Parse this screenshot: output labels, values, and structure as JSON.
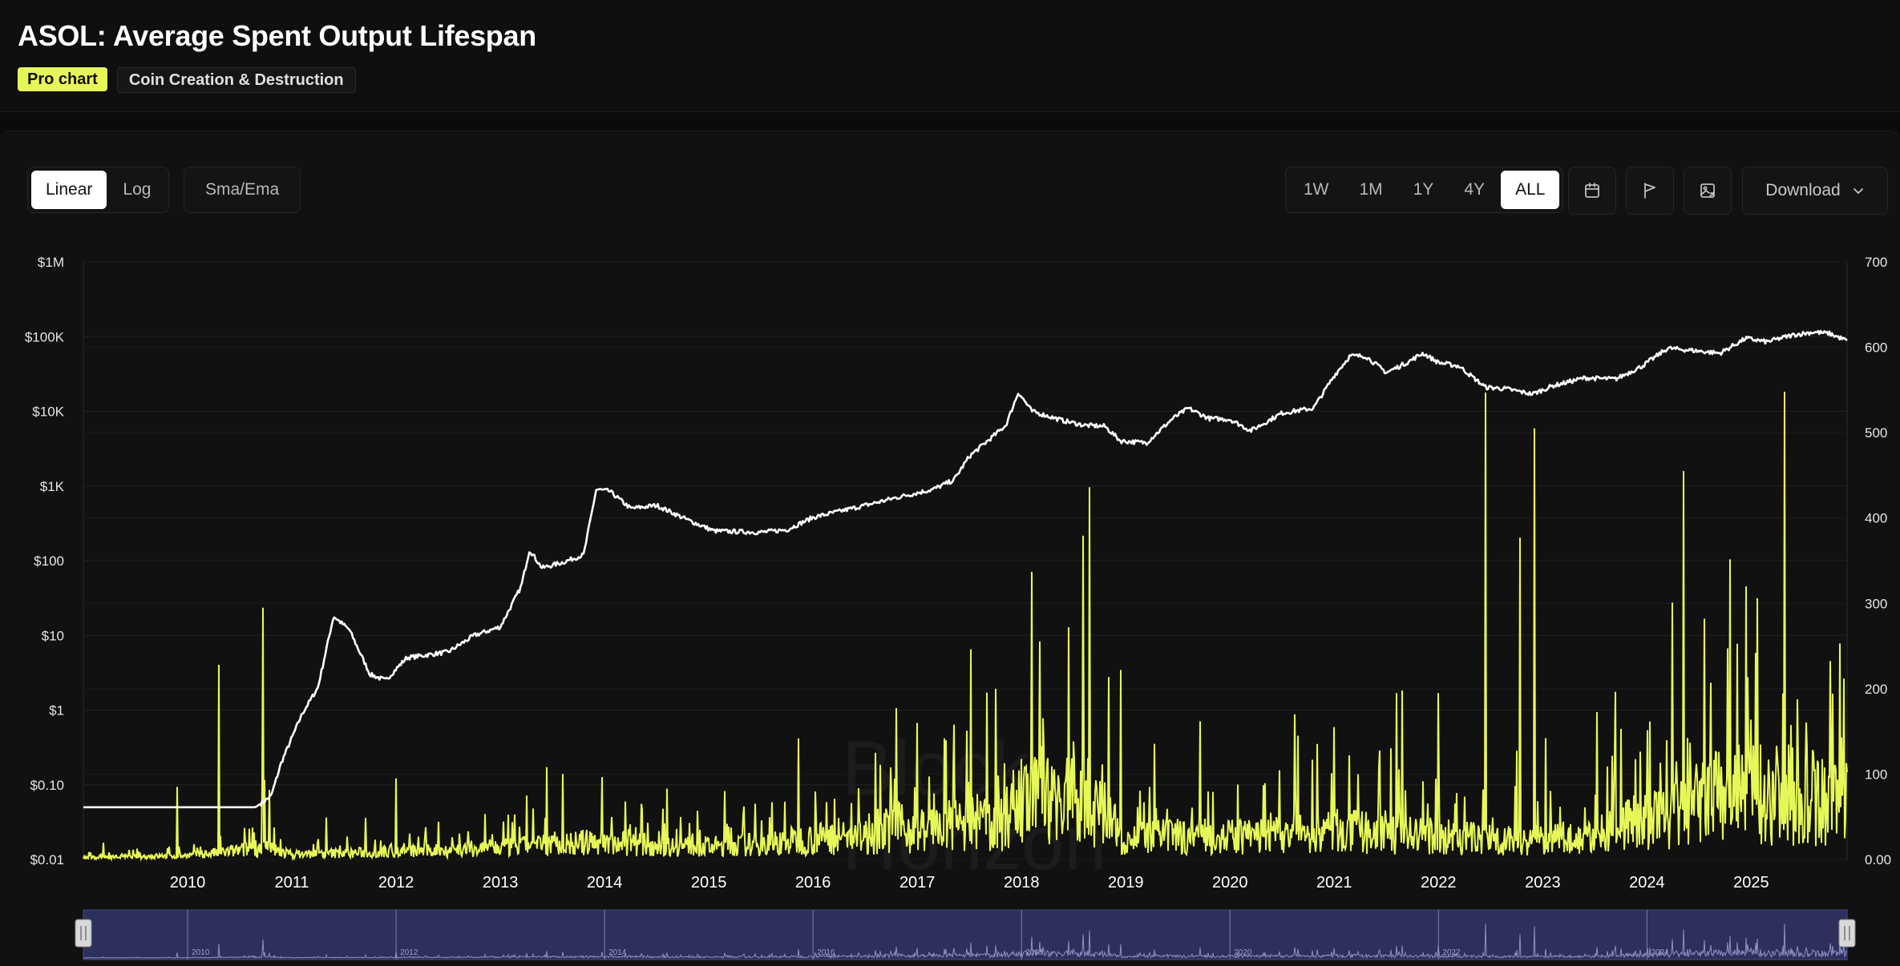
{
  "header": {
    "title": "ASOL: Average Spent Output Lifespan",
    "tags": {
      "pro": "Pro chart",
      "category": "Coin Creation & Destruction"
    }
  },
  "toolbar": {
    "scale": {
      "linear": "Linear",
      "log": "Log",
      "active": "Linear"
    },
    "sma_ema": "Sma/Ema",
    "ranges": [
      "1W",
      "1M",
      "1Y",
      "4Y",
      "ALL"
    ],
    "active_range": "ALL",
    "icons": [
      "calendar-icon",
      "flag-icon",
      "image-export-icon"
    ],
    "download_label": "Download"
  },
  "colors": {
    "price": "#ffffff",
    "asol": "#e7f758",
    "navigator": "#2d2f5c"
  },
  "watermark": {
    "line1": "Block",
    "line2": "Horizon"
  },
  "chart_data": {
    "type": "line",
    "title": "ASOL: Average Spent Output Lifespan",
    "x_range": [
      2009.0,
      2025.92
    ],
    "x_ticks": [
      "2010",
      "2011",
      "2012",
      "2013",
      "2014",
      "2015",
      "2016",
      "2017",
      "2018",
      "2019",
      "2020",
      "2021",
      "2022",
      "2023",
      "2024",
      "2025"
    ],
    "y_left": {
      "scale": "log",
      "range": [
        0.01,
        1000000
      ],
      "ticks": [
        "$0.01",
        "$0.10",
        "$1",
        "$10",
        "$100",
        "$1K",
        "$10K",
        "$100K",
        "$1M"
      ]
    },
    "y_right": {
      "scale": "linear",
      "range": [
        0,
        700
      ],
      "ticks": [
        "0.00",
        "100",
        "200",
        "300",
        "400",
        "500",
        "600",
        "700"
      ]
    },
    "grid": true,
    "series": [
      {
        "axis": "left",
        "style": "line",
        "points": [
          [
            2009.0,
            0.05
          ],
          [
            2010.65,
            0.05
          ],
          [
            2010.8,
            0.07
          ],
          [
            2010.9,
            0.2
          ],
          [
            2011.1,
            0.9
          ],
          [
            2011.25,
            2
          ],
          [
            2011.4,
            18
          ],
          [
            2011.55,
            12
          ],
          [
            2011.75,
            3
          ],
          [
            2011.9,
            2.5
          ],
          [
            2012.1,
            5
          ],
          [
            2012.5,
            6
          ],
          [
            2012.75,
            10
          ],
          [
            2013.0,
            13
          ],
          [
            2013.2,
            45
          ],
          [
            2013.28,
            140
          ],
          [
            2013.4,
            80
          ],
          [
            2013.6,
            95
          ],
          [
            2013.8,
            120
          ],
          [
            2013.92,
            900
          ],
          [
            2014.05,
            850
          ],
          [
            2014.25,
            500
          ],
          [
            2014.5,
            550
          ],
          [
            2014.8,
            350
          ],
          [
            2015.05,
            250
          ],
          [
            2015.5,
            240
          ],
          [
            2015.75,
            260
          ],
          [
            2016.0,
            380
          ],
          [
            2016.5,
            550
          ],
          [
            2016.8,
            700
          ],
          [
            2017.15,
            900
          ],
          [
            2017.35,
            1200
          ],
          [
            2017.5,
            2500
          ],
          [
            2017.7,
            4300
          ],
          [
            2017.85,
            6500
          ],
          [
            2017.97,
            18000
          ],
          [
            2018.1,
            10000
          ],
          [
            2018.4,
            7500
          ],
          [
            2018.6,
            6500
          ],
          [
            2018.8,
            6300
          ],
          [
            2018.95,
            4000
          ],
          [
            2019.2,
            3800
          ],
          [
            2019.45,
            8000
          ],
          [
            2019.6,
            11000
          ],
          [
            2019.8,
            8000
          ],
          [
            2020.0,
            7800
          ],
          [
            2020.2,
            5500
          ],
          [
            2020.5,
            9500
          ],
          [
            2020.8,
            11000
          ],
          [
            2021.0,
            30000
          ],
          [
            2021.15,
            55000
          ],
          [
            2021.3,
            55000
          ],
          [
            2021.5,
            33000
          ],
          [
            2021.7,
            45000
          ],
          [
            2021.85,
            60000
          ],
          [
            2022.0,
            45000
          ],
          [
            2022.2,
            40000
          ],
          [
            2022.45,
            21000
          ],
          [
            2022.65,
            20000
          ],
          [
            2022.9,
            17000
          ],
          [
            2023.1,
            22000
          ],
          [
            2023.4,
            28000
          ],
          [
            2023.7,
            27000
          ],
          [
            2023.95,
            40000
          ],
          [
            2024.2,
            70000
          ],
          [
            2024.45,
            65000
          ],
          [
            2024.7,
            60000
          ],
          [
            2024.95,
            95000
          ],
          [
            2025.15,
            85000
          ],
          [
            2025.4,
            105000
          ],
          [
            2025.6,
            115000
          ],
          [
            2025.75,
            110000
          ],
          [
            2025.92,
            88000
          ]
        ]
      },
      {
        "axis": "right",
        "style": "spikes",
        "baseline": [
          [
            2009.0,
            3
          ],
          [
            2010.0,
            6
          ],
          [
            2010.5,
            14
          ],
          [
            2010.7,
            20
          ],
          [
            2011.0,
            8
          ],
          [
            2012.0,
            12
          ],
          [
            2013.0,
            18
          ],
          [
            2013.6,
            24
          ],
          [
            2014.0,
            28
          ],
          [
            2014.5,
            22
          ],
          [
            2015.0,
            20
          ],
          [
            2015.5,
            24
          ],
          [
            2016.0,
            32
          ],
          [
            2016.5,
            35
          ],
          [
            2016.8,
            50
          ],
          [
            2017.0,
            45
          ],
          [
            2017.3,
            52
          ],
          [
            2017.6,
            58
          ],
          [
            2017.85,
            55
          ],
          [
            2018.0,
            90
          ],
          [
            2018.4,
            95
          ],
          [
            2018.7,
            80
          ],
          [
            2019.0,
            32
          ],
          [
            2019.5,
            36
          ],
          [
            2020.0,
            35
          ],
          [
            2020.5,
            38
          ],
          [
            2021.0,
            45
          ],
          [
            2021.5,
            40
          ],
          [
            2022.0,
            36
          ],
          [
            2022.5,
            32
          ],
          [
            2023.0,
            30
          ],
          [
            2023.5,
            34
          ],
          [
            2023.75,
            55
          ],
          [
            2024.0,
            60
          ],
          [
            2024.3,
            70
          ],
          [
            2024.6,
            95
          ],
          [
            2025.0,
            105
          ],
          [
            2025.5,
            100
          ],
          [
            2025.92,
            90
          ]
        ],
        "peaks": [
          [
            2009.9,
            85
          ],
          [
            2010.3,
            228
          ],
          [
            2010.72,
            295
          ],
          [
            2012.0,
            95
          ],
          [
            2013.25,
            75
          ],
          [
            2014.6,
            83
          ],
          [
            2015.15,
            80
          ],
          [
            2016.6,
            125
          ],
          [
            2017.0,
            160
          ],
          [
            2017.35,
            158
          ],
          [
            2017.75,
            200
          ],
          [
            2018.1,
            337
          ],
          [
            2018.45,
            272
          ],
          [
            2018.95,
            222
          ],
          [
            2020.65,
            145
          ],
          [
            2021.0,
            155
          ],
          [
            2021.6,
            195
          ],
          [
            2022.0,
            195
          ],
          [
            2022.45,
            547
          ],
          [
            2022.78,
            377
          ],
          [
            2022.92,
            505
          ],
          [
            2023.75,
            153
          ],
          [
            2024.35,
            455
          ],
          [
            2024.55,
            282
          ],
          [
            2024.95,
            320
          ],
          [
            2025.32,
            548
          ],
          [
            2025.85,
            253
          ]
        ]
      }
    ]
  }
}
